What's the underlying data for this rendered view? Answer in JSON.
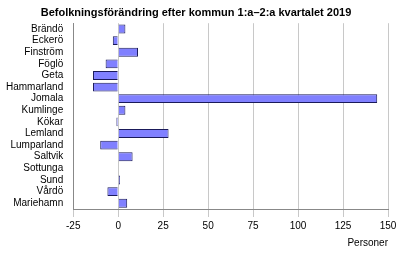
{
  "chart_data": {
    "type": "bar",
    "orientation": "horizontal",
    "title": "Befolkningsförändring efter kommun 1:a–2:a kvartalet 2019",
    "x_label": "Personer",
    "categories": [
      "Brändö",
      "Eckerö",
      "Finström",
      "Föglö",
      "Geta",
      "Hammarland",
      "Jomala",
      "Kumlinge",
      "Kökar",
      "Lemland",
      "Lumparland",
      "Saltvik",
      "Sottunga",
      "Sund",
      "Vårdö",
      "Mariehamn"
    ],
    "values": [
      4,
      -3,
      11,
      -7,
      -14,
      -14,
      144,
      4,
      -1,
      28,
      -10,
      8,
      0,
      1,
      -6,
      5
    ],
    "color": "#8080ff",
    "xlim": [
      -25,
      150
    ],
    "xticks": [
      -25,
      0,
      25,
      50,
      75,
      100,
      125,
      150
    ],
    "grid": true
  }
}
